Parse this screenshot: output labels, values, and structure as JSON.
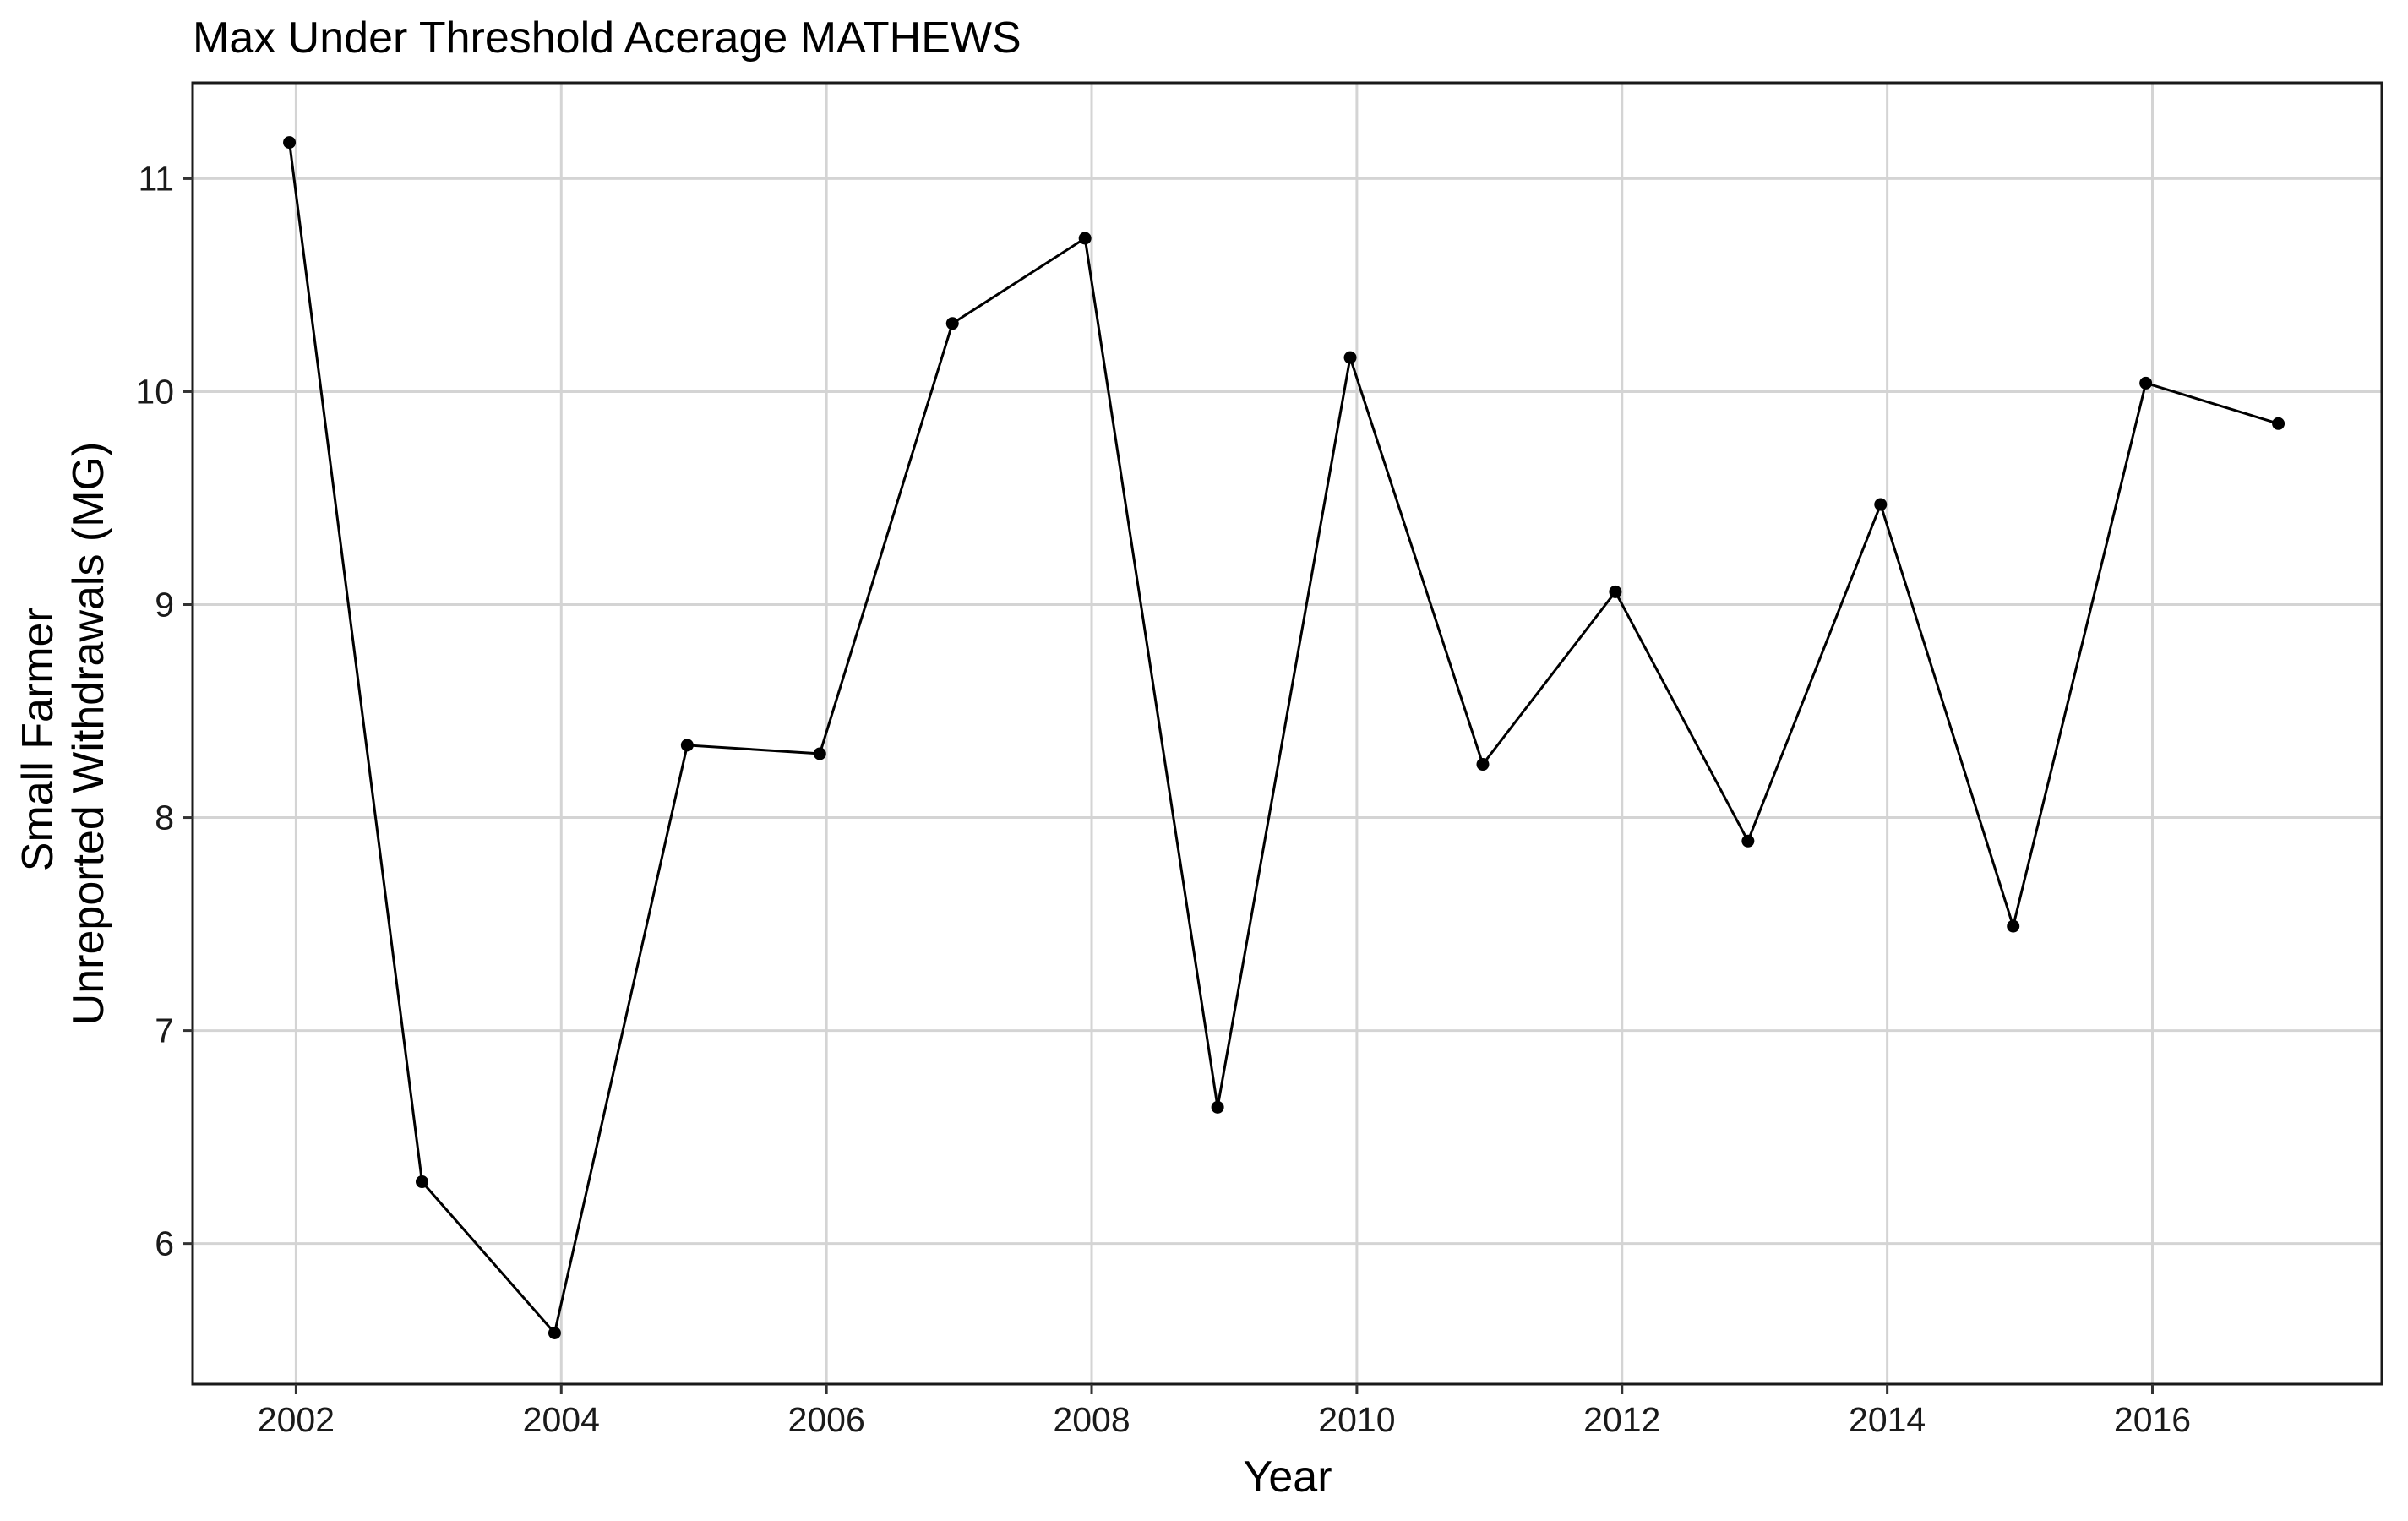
{
  "chart_data": {
    "type": "line",
    "title": "Max Under Threshold Acerage MATHEWS",
    "xlabel": "Year",
    "ylabel_lines": [
      "Small Farmer",
      "Unreported Withdrawals (MG)"
    ],
    "x": [
      2001.95,
      2002.95,
      2003.95,
      2004.95,
      2005.95,
      2006.95,
      2007.95,
      2008.95,
      2009.95,
      2010.95,
      2011.95,
      2012.95,
      2013.95,
      2014.95,
      2015.95,
      2016.95
    ],
    "series": [
      {
        "values": [
          11.17,
          6.29,
          5.58,
          8.34,
          8.3,
          10.32,
          10.72,
          6.64,
          10.16,
          8.25,
          9.06,
          7.89,
          9.47,
          7.49,
          10.04,
          9.85
        ]
      }
    ],
    "xlim": [
      2001.22,
      2017.73
    ],
    "ylim": [
      5.34,
      11.45
    ],
    "x_ticks": [
      2002,
      2004,
      2006,
      2008,
      2010,
      2012,
      2014,
      2016
    ],
    "x_tick_labels": [
      "2002",
      "2004",
      "2006",
      "2008",
      "2010",
      "2012",
      "2014",
      "2016"
    ],
    "y_ticks": [
      6,
      7,
      8,
      9,
      10,
      11
    ],
    "y_tick_labels": [
      "6",
      "7",
      "8",
      "9",
      "10",
      "11"
    ],
    "grid": true,
    "legend": "none"
  }
}
